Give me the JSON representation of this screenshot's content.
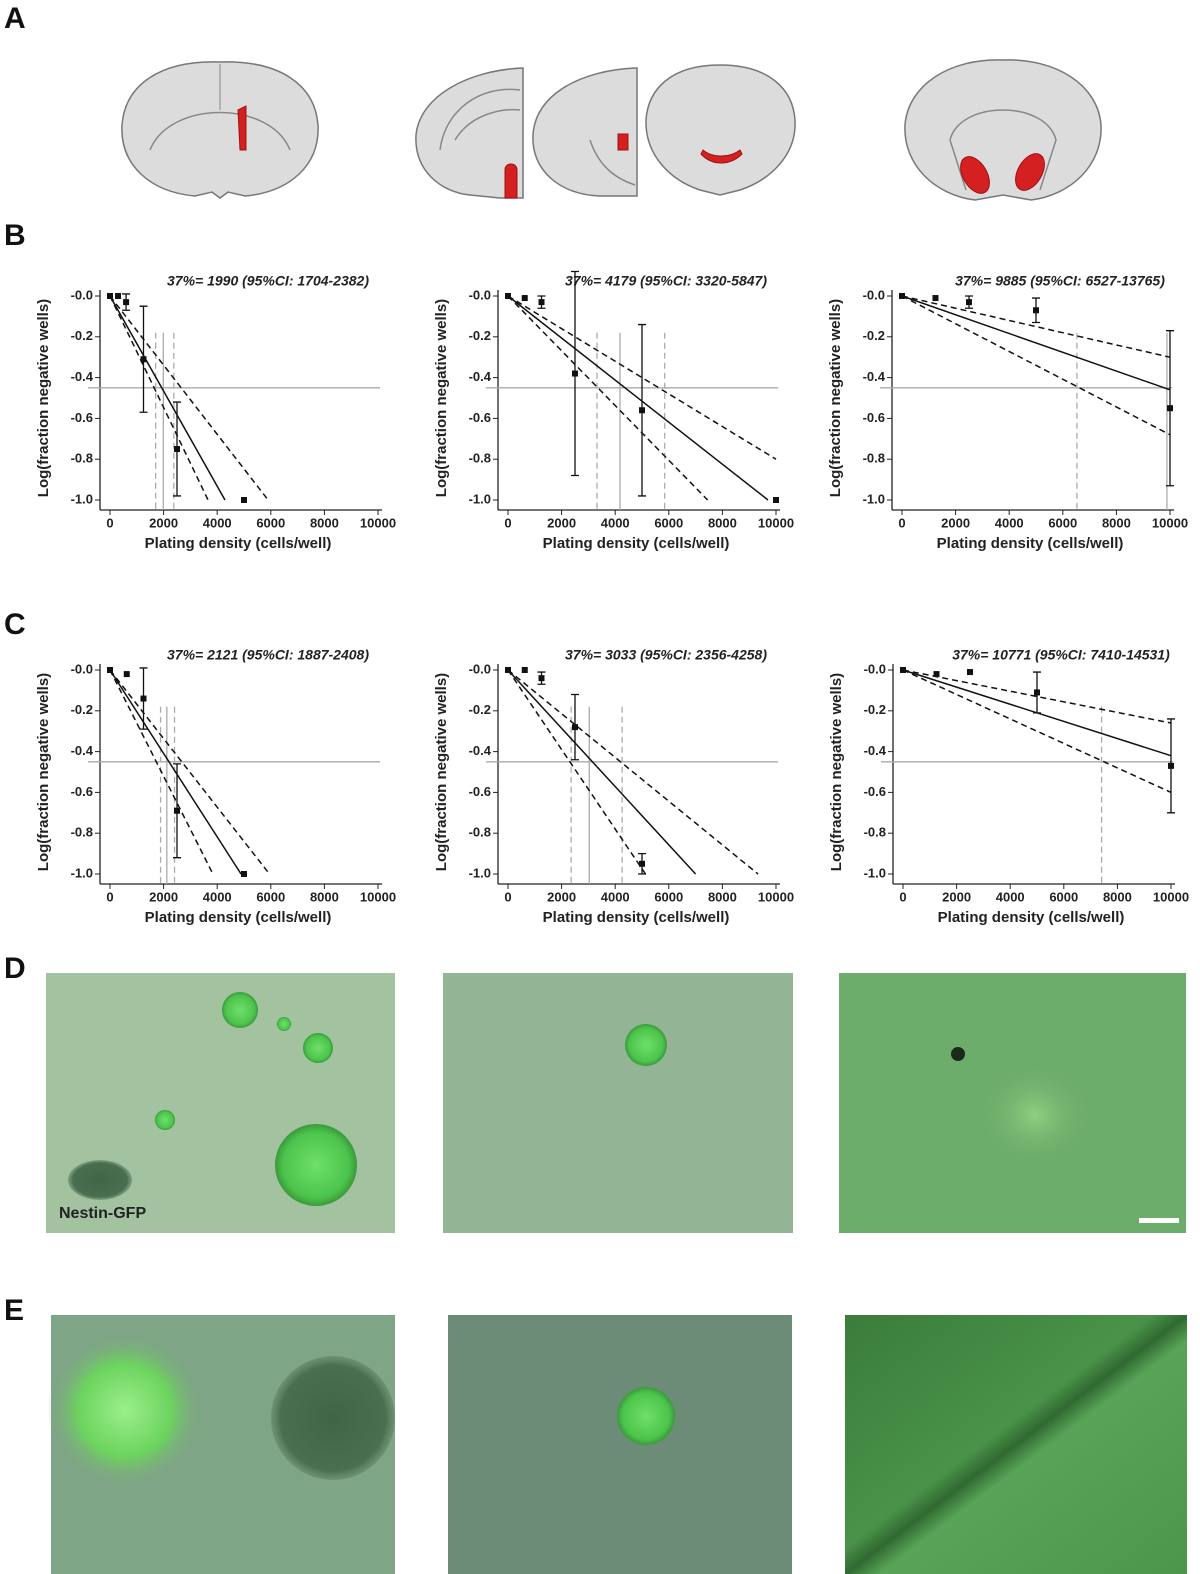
{
  "panel_labels": [
    "A",
    "B",
    "C",
    "D",
    "E"
  ],
  "micrograph_label": "Nestin-GFP",
  "chart_data": [
    {
      "type": "scatter",
      "title": "37%= 1990 (95%CI: 1704-2382)",
      "x_label": "Plating density (cells/well)",
      "y_label": "Log(fraction negative wells)",
      "xlim": [
        0,
        10000
      ],
      "xticks": [
        0,
        2000,
        4000,
        6000,
        8000,
        10000
      ],
      "ylim": [
        -1.05,
        0
      ],
      "yticks": [
        {
          "value": 0,
          "label": "-0.0"
        },
        -0.2,
        -0.4,
        -0.6,
        -0.8,
        {
          "value": -1,
          "label": "-1.0"
        }
      ],
      "points": {
        "x": [
          0,
          300,
          600,
          1250,
          2500,
          5000
        ],
        "y": [
          0,
          0,
          -0.03,
          -0.31,
          -0.75,
          -1.0
        ],
        "err": [
          null,
          null,
          0.04,
          0.26,
          0.23,
          null
        ]
      },
      "fit": {
        "x": [
          0,
          4290
        ],
        "y": [
          0,
          -1.0
        ]
      },
      "ci_upper": {
        "x": [
          0,
          5900
        ],
        "y": [
          0,
          -1.0
        ]
      },
      "ci_lower": {
        "x": [
          0,
          3660
        ],
        "y": [
          0,
          -1.0
        ]
      },
      "reference_y": -0.45,
      "estimate": 1990,
      "ci": [
        1704,
        2382
      ]
    },
    {
      "type": "scatter",
      "title": "37%= 4179 (95%CI: 3320-5847)",
      "x_label": "Plating density (cells/well)",
      "y_label": "Log(fraction negative wells)",
      "xlim": [
        0,
        10000
      ],
      "xticks": [
        0,
        2000,
        4000,
        6000,
        8000,
        10000
      ],
      "ylim": [
        -1.05,
        0
      ],
      "yticks": [
        {
          "value": 0,
          "label": "-0.0"
        },
        -0.2,
        -0.4,
        -0.6,
        -0.8,
        {
          "value": -1,
          "label": "-1.0"
        }
      ],
      "points": {
        "x": [
          0,
          625,
          1250,
          2500,
          5000,
          10000
        ],
        "y": [
          0,
          -0.01,
          -0.03,
          -0.38,
          -0.56,
          -1.0
        ],
        "err": [
          null,
          null,
          0.03,
          0.5,
          0.42,
          null
        ]
      },
      "fit": {
        "x": [
          0,
          9700
        ],
        "y": [
          0,
          -1.0
        ]
      },
      "ci_upper": {
        "x": [
          0,
          10000
        ],
        "y": [
          0,
          -0.8
        ]
      },
      "ci_lower": {
        "x": [
          0,
          7450
        ],
        "y": [
          0,
          -1.0
        ]
      },
      "reference_y": -0.45,
      "estimate": 4179,
      "ci": [
        3320,
        5847
      ]
    },
    {
      "type": "scatter",
      "title": "37%= 9885 (95%CI: 6527-13765)",
      "x_label": "Plating density (cells/well)",
      "y_label": "Log(fraction negative wells)",
      "xlim": [
        0,
        10000
      ],
      "xticks": [
        0,
        2000,
        4000,
        6000,
        8000,
        10000
      ],
      "ylim": [
        -1.05,
        0
      ],
      "yticks": [
        {
          "value": 0,
          "label": "-0.0"
        },
        -0.2,
        -0.4,
        -0.6,
        -0.8,
        {
          "value": -1,
          "label": "-1.0"
        }
      ],
      "points": {
        "x": [
          0,
          1250,
          2500,
          5000,
          10000
        ],
        "y": [
          0,
          -0.01,
          -0.03,
          -0.07,
          -0.55
        ],
        "err": [
          null,
          null,
          0.03,
          0.06,
          0.38
        ]
      },
      "fit": {
        "x": [
          0,
          10000
        ],
        "y": [
          0,
          -0.46
        ]
      },
      "ci_upper": {
        "x": [
          0,
          10000
        ],
        "y": [
          0,
          -0.3
        ]
      },
      "ci_lower": {
        "x": [
          0,
          10000
        ],
        "y": [
          0,
          -0.68
        ]
      },
      "reference_y": -0.45,
      "estimate": 9885,
      "ci": [
        6527,
        13765
      ]
    },
    {
      "type": "scatter",
      "title": "37%= 2121 (95%CI: 1887-2408)",
      "x_label": "Plating density (cells/well)",
      "y_label": "Log(fraction negative wells)",
      "xlim": [
        0,
        10000
      ],
      "xticks": [
        0,
        2000,
        4000,
        6000,
        8000,
        10000
      ],
      "ylim": [
        -1.05,
        0
      ],
      "yticks": [
        {
          "value": 0,
          "label": "-0.0"
        },
        -0.2,
        -0.4,
        -0.6,
        -0.8,
        {
          "value": -1,
          "label": "-1.0"
        }
      ],
      "points": {
        "x": [
          0,
          625,
          1250,
          2500,
          5000
        ],
        "y": [
          0,
          -0.02,
          -0.14,
          -0.69,
          -1.0
        ],
        "err": [
          null,
          null,
          0.15,
          0.23,
          null
        ]
      },
      "fit": {
        "x": [
          0,
          4890
        ],
        "y": [
          0,
          -1.0
        ]
      },
      "ci_upper": {
        "x": [
          0,
          5950
        ],
        "y": [
          0,
          -1.0
        ]
      },
      "ci_lower": {
        "x": [
          0,
          3840
        ],
        "y": [
          0,
          -1.0
        ]
      },
      "reference_y": -0.45,
      "estimate": 2121,
      "ci": [
        1887,
        2408
      ]
    },
    {
      "type": "scatter",
      "title": "37%= 3033 (95%CI: 2356-4258)",
      "x_label": "Plating density (cells/well)",
      "y_label": "Log(fraction negative wells)",
      "xlim": [
        0,
        10000
      ],
      "xticks": [
        0,
        2000,
        4000,
        6000,
        8000,
        10000
      ],
      "ylim": [
        -1.05,
        0
      ],
      "yticks": [
        {
          "value": 0,
          "label": "-0.0"
        },
        -0.2,
        -0.4,
        -0.6,
        -0.8,
        {
          "value": -1,
          "label": "-1.0"
        }
      ],
      "points": {
        "x": [
          0,
          625,
          1250,
          2500,
          5000
        ],
        "y": [
          0,
          0,
          -0.04,
          -0.28,
          -0.95
        ],
        "err": [
          null,
          null,
          0.03,
          0.16,
          0.05
        ]
      },
      "fit": {
        "x": [
          0,
          7000
        ],
        "y": [
          0,
          -1.0
        ]
      },
      "ci_upper": {
        "x": [
          0,
          9330
        ],
        "y": [
          0,
          -1.0
        ]
      },
      "ci_lower": {
        "x": [
          0,
          5130
        ],
        "y": [
          0,
          -1.0
        ]
      },
      "reference_y": -0.45,
      "estimate": 3033,
      "ci": [
        2356,
        4258
      ]
    },
    {
      "type": "scatter",
      "title": "37%= 10771 (95%CI: 7410-14531)",
      "x_label": "Plating density (cells/well)",
      "y_label": "Log(fraction negative wells)",
      "xlim": [
        0,
        10000
      ],
      "xticks": [
        0,
        2000,
        4000,
        6000,
        8000,
        10000
      ],
      "ylim": [
        -1.05,
        0
      ],
      "yticks": [
        {
          "value": 0,
          "label": "-0.0"
        },
        -0.2,
        -0.4,
        -0.6,
        -0.8,
        {
          "value": -1,
          "label": "-1.0"
        }
      ],
      "points": {
        "x": [
          0,
          1250,
          2500,
          5000,
          10000
        ],
        "y": [
          0,
          -0.02,
          -0.01,
          -0.11,
          -0.47
        ],
        "err": [
          null,
          null,
          null,
          0.1,
          0.23
        ]
      },
      "fit": {
        "x": [
          0,
          10000
        ],
        "y": [
          0,
          -0.42
        ]
      },
      "ci_upper": {
        "x": [
          0,
          10000
        ],
        "y": [
          0,
          -0.26
        ]
      },
      "ci_lower": {
        "x": [
          0,
          10000
        ],
        "y": [
          0,
          -0.6
        ]
      },
      "reference_y": -0.45,
      "estimate": 10771,
      "ci": [
        7410,
        14531
      ]
    }
  ]
}
